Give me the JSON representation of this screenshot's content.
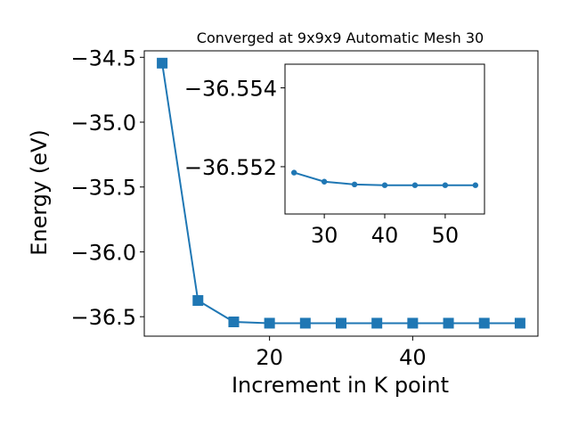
{
  "colors": {
    "series": "#1f77b4",
    "axes": "#000000",
    "background": "#ffffff"
  },
  "chart_data": [
    {
      "type": "line",
      "title": "Converged at 9x9x9 Automatic Mesh 30",
      "xlabel": "Increment in K point",
      "ylabel": "Energy (eV)",
      "marker": "square",
      "grid": false,
      "xlim": [
        2.5,
        57.5
      ],
      "ylim": [
        -36.65,
        -34.45
      ],
      "xticks": [
        20,
        40
      ],
      "xtick_labels": [
        "20",
        "40"
      ],
      "yticks": [
        -36.5,
        -36.0,
        -35.5,
        -35.0,
        -34.5
      ],
      "ytick_labels": [
        "−36.5",
        "−36.0",
        "−35.5",
        "−35.0",
        "−34.5"
      ],
      "series": [
        {
          "x": [
            5,
            10,
            15,
            20,
            25,
            30,
            35,
            40,
            45,
            50,
            55
          ],
          "y": [
            -34.545,
            -36.375,
            -36.54,
            -36.55,
            -36.55,
            -36.55,
            -36.55,
            -36.55,
            -36.55,
            -36.55,
            -36.55
          ]
        }
      ]
    },
    {
      "type": "line",
      "inset": true,
      "marker": "circle",
      "grid": false,
      "xlim": [
        23.5,
        56.5
      ],
      "ylim": [
        -36.5508,
        -36.5546
      ],
      "xticks": [
        30,
        40,
        50
      ],
      "xtick_labels": [
        "30",
        "40",
        "50"
      ],
      "yticks": [
        -36.554,
        -36.552
      ],
      "ytick_labels": [
        "−36.554",
        "−36.552"
      ],
      "series": [
        {
          "x": [
            25,
            30,
            35,
            40,
            45,
            50,
            55
          ],
          "y": [
            -36.55185,
            -36.55162,
            -36.55155,
            -36.55153,
            -36.55153,
            -36.55153,
            -36.55153
          ]
        }
      ]
    }
  ]
}
